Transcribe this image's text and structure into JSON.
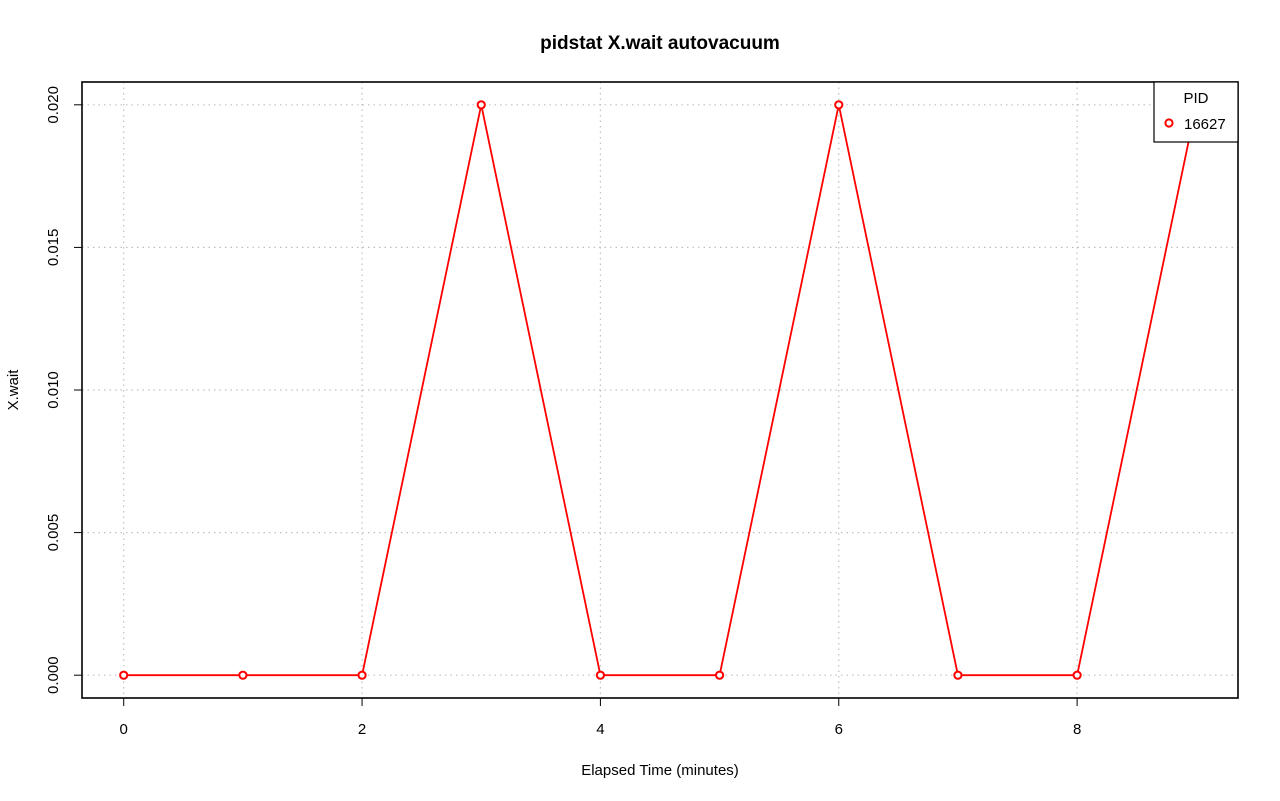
{
  "chart_data": {
    "type": "line",
    "title": "pidstat X.wait autovacuum",
    "xlabel": "Elapsed Time (minutes)",
    "ylabel": "X.wait",
    "xlim": [
      -0.35,
      9.35
    ],
    "ylim": [
      -0.0008,
      0.0208
    ],
    "x_ticks": [
      0,
      2,
      4,
      6,
      8
    ],
    "x_tick_labels": [
      "0",
      "2",
      "4",
      "6",
      "8"
    ],
    "y_ticks": [
      0.0,
      0.005,
      0.01,
      0.015,
      0.02
    ],
    "y_tick_labels": [
      "0.000",
      "0.005",
      "0.010",
      "0.015",
      "0.020"
    ],
    "grid": true,
    "legend": {
      "title": "PID",
      "position": "top-right"
    },
    "series": [
      {
        "name": "16627",
        "color": "#ff0000",
        "x": [
          0,
          1,
          2,
          3,
          4,
          5,
          6,
          7,
          8,
          9
        ],
        "values": [
          0.0,
          0.0,
          0.0,
          0.02,
          0.0,
          0.0,
          0.02,
          0.0,
          0.0,
          0.02
        ]
      }
    ]
  }
}
